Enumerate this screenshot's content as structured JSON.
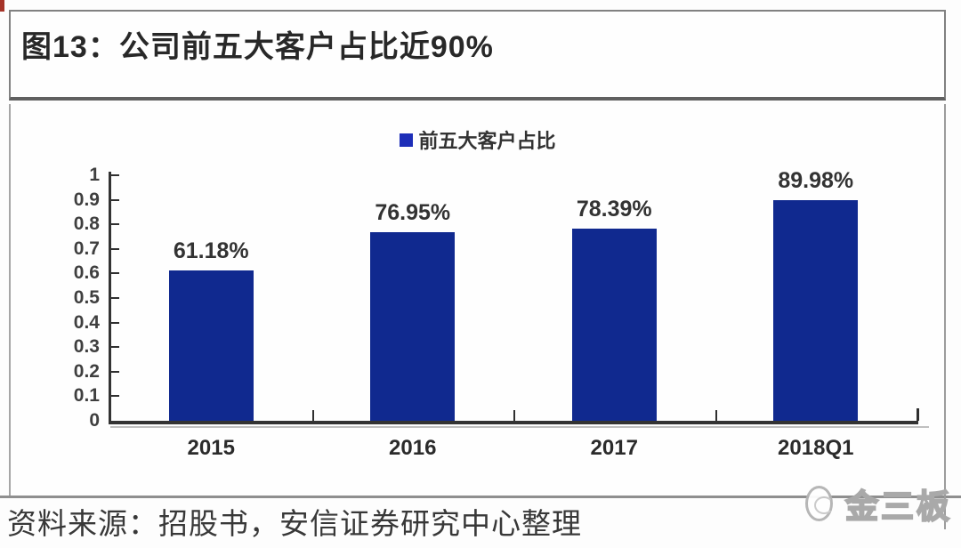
{
  "header": {
    "title": "图13：公司前五大客户占比近90%"
  },
  "footer": {
    "source": "资料来源：招股书，安信证券研究中心整理",
    "watermark": "金三板"
  },
  "chart_data": {
    "type": "bar",
    "title": "图13：公司前五大客户占比近90%",
    "legend": [
      {
        "label": "前五大客户占比",
        "swatch_color": "#1d2eb8"
      }
    ],
    "legend_position": "top-center",
    "categories": [
      "2015",
      "2016",
      "2017",
      "2018Q1"
    ],
    "values": [
      0.6118,
      0.7695,
      0.7839,
      0.8998
    ],
    "data_labels": [
      "61.18%",
      "76.95%",
      "78.39%",
      "89.98%"
    ],
    "ylim": [
      0,
      1
    ],
    "ytick_labels": [
      "0",
      "0.1",
      "0.2",
      "0.3",
      "0.4",
      "0.5",
      "0.6",
      "0.7",
      "0.8",
      "0.9",
      "1"
    ],
    "grid": false,
    "bar_color": "#10298f",
    "xlabel": "",
    "ylabel": ""
  }
}
